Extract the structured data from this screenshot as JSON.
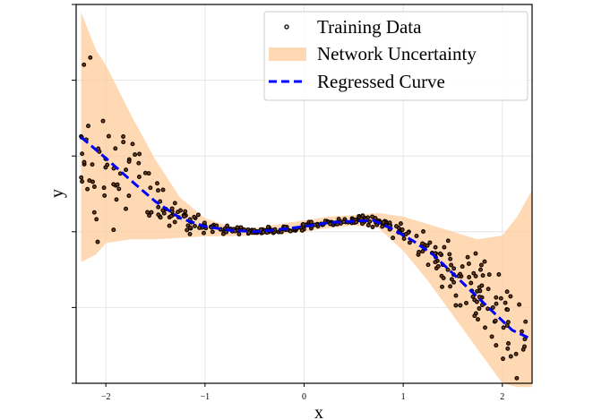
{
  "chart_data": {
    "type": "scatter",
    "xlabel": "x",
    "ylabel": "y",
    "xlim": [
      -2.3,
      2.3
    ],
    "ylim": [
      -2.0,
      3.0
    ],
    "x_ticks": [
      -2,
      -1,
      0,
      1,
      2
    ],
    "x_tick_labels": [
      "−2",
      "−1",
      "0",
      "1",
      "2"
    ],
    "y_ticks": [
      -2,
      -1,
      0,
      1,
      2,
      3
    ],
    "y_tick_labels_shown": false,
    "grid": true,
    "legend_position": "top-right",
    "colors": {
      "training_point_edge": "#000000",
      "uncertainty_fill": "#ffcc99",
      "regressed_curve": "#0000ff"
    },
    "legend": [
      {
        "label": "Training Data",
        "kind": "scatter"
      },
      {
        "label": "Network Uncertainty",
        "kind": "band"
      },
      {
        "label": "Regressed Curve",
        "kind": "dashed-line"
      }
    ],
    "regressed_curve": {
      "x": [
        -2.25,
        -2.0,
        -1.75,
        -1.5,
        -1.25,
        -1.0,
        -0.75,
        -0.5,
        -0.25,
        0.0,
        0.25,
        0.5,
        0.7,
        0.9,
        1.1,
        1.3,
        1.5,
        1.7,
        1.9,
        2.1,
        2.3
      ],
      "y": [
        1.25,
        0.97,
        0.68,
        0.4,
        0.18,
        0.07,
        0.02,
        0.0,
        0.03,
        0.07,
        0.12,
        0.14,
        0.15,
        0.03,
        -0.12,
        -0.3,
        -0.55,
        -0.8,
        -1.05,
        -1.3,
        -1.42
      ]
    },
    "uncertainty_band": {
      "x": [
        -2.25,
        -2.1,
        -2.0,
        -1.75,
        -1.5,
        -1.25,
        -1.0,
        -0.75,
        -0.5,
        -0.25,
        0.0,
        0.25,
        0.5,
        0.75,
        1.0,
        1.25,
        1.5,
        1.75,
        2.0,
        2.15,
        2.3
      ],
      "upper": [
        2.9,
        2.4,
        2.2,
        1.55,
        0.95,
        0.45,
        0.18,
        0.07,
        0.05,
        0.1,
        0.15,
        0.2,
        0.22,
        0.25,
        0.2,
        0.1,
        0.0,
        -0.1,
        -0.05,
        0.2,
        0.55
      ],
      "lower": [
        -0.4,
        -0.3,
        -0.15,
        -0.1,
        -0.1,
        -0.08,
        -0.06,
        -0.06,
        -0.05,
        -0.03,
        0.0,
        0.05,
        0.08,
        0.05,
        -0.25,
        -0.65,
        -1.1,
        -1.55,
        -2.0,
        -2.05,
        -2.05
      ]
    },
    "training_data": {
      "count": 400,
      "x_range": [
        -2.25,
        2.25
      ],
      "spread_description": "noisy samples around the regressed curve; large spread at |x|>1.3, tight near x in [-0.9, 0.9]"
    }
  }
}
